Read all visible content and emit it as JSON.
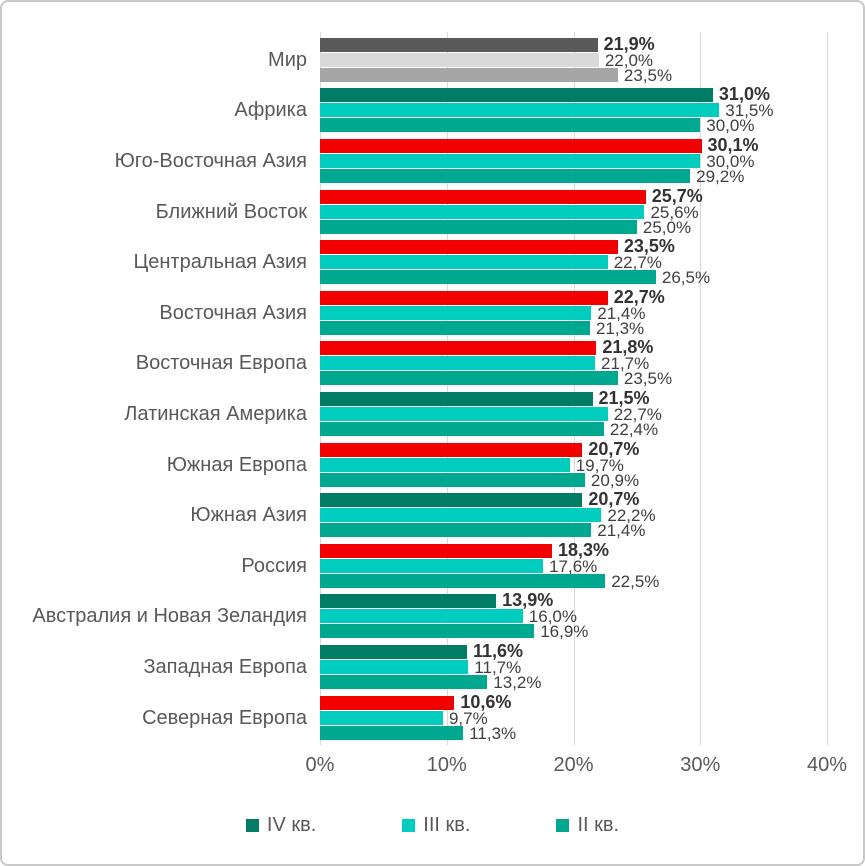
{
  "chart_data": {
    "type": "bar",
    "orientation": "horizontal",
    "title": "",
    "xlabel": "",
    "ylabel": "",
    "xlim": [
      0,
      40
    ],
    "grid": true,
    "x_ticks": [
      "0%",
      "10%",
      "20%",
      "30%",
      "40%"
    ],
    "x_tick_values": [
      0,
      10,
      20,
      30,
      40
    ],
    "legend_position": "bottom",
    "series": [
      {
        "key": "q4",
        "name": "IV кв.",
        "color": "#007D64"
      },
      {
        "key": "q3",
        "name": "III кв.",
        "color": "#00CDBE"
      },
      {
        "key": "q2",
        "name": "II кв.",
        "color": "#00A88F"
      }
    ],
    "highlight_color": "#F20000",
    "rows": [
      {
        "category": "Мир",
        "values": [
          21.9,
          22.0,
          23.5
        ],
        "labels": [
          "21,9%",
          "22,0%",
          "23,5%"
        ],
        "colors": [
          "#595959",
          "#D9D9D9",
          "#A6A6A6"
        ]
      },
      {
        "category": "Африка",
        "values": [
          31.0,
          31.5,
          30.0
        ],
        "labels": [
          "31,0%",
          "31,5%",
          "30,0%"
        ],
        "colors": [
          "#007D64",
          "#00CDBE",
          "#00A88F"
        ]
      },
      {
        "category": "Юго-Восточная Азия",
        "values": [
          30.1,
          30.0,
          29.2
        ],
        "labels": [
          "30,1%",
          "30,0%",
          "29,2%"
        ],
        "colors": [
          "#F20000",
          "#00CDBE",
          "#00A88F"
        ]
      },
      {
        "category": "Ближний Восток",
        "values": [
          25.7,
          25.6,
          25.0
        ],
        "labels": [
          "25,7%",
          "25,6%",
          "25,0%"
        ],
        "colors": [
          "#F20000",
          "#00CDBE",
          "#00A88F"
        ]
      },
      {
        "category": "Центральная Азия",
        "values": [
          23.5,
          22.7,
          26.5
        ],
        "labels": [
          "23,5%",
          "22,7%",
          "26,5%"
        ],
        "colors": [
          "#F20000",
          "#00CDBE",
          "#00A88F"
        ]
      },
      {
        "category": "Восточная Азия",
        "values": [
          22.7,
          21.4,
          21.3
        ],
        "labels": [
          "22,7%",
          "21,4%",
          "21,3%"
        ],
        "colors": [
          "#F20000",
          "#00CDBE",
          "#00A88F"
        ]
      },
      {
        "category": "Восточная Европа",
        "values": [
          21.8,
          21.7,
          23.5
        ],
        "labels": [
          "21,8%",
          "21,7%",
          "23,5%"
        ],
        "colors": [
          "#F20000",
          "#00CDBE",
          "#00A88F"
        ]
      },
      {
        "category": "Латинская Америка",
        "values": [
          21.5,
          22.7,
          22.4
        ],
        "labels": [
          "21,5%",
          "22,7%",
          "22,4%"
        ],
        "colors": [
          "#007D64",
          "#00CDBE",
          "#00A88F"
        ]
      },
      {
        "category": "Южная Европа",
        "values": [
          20.7,
          19.7,
          20.9
        ],
        "labels": [
          "20,7%",
          "19,7%",
          "20,9%"
        ],
        "colors": [
          "#F20000",
          "#00CDBE",
          "#00A88F"
        ]
      },
      {
        "category": "Южная Азия",
        "values": [
          20.7,
          22.2,
          21.4
        ],
        "labels": [
          "20,7%",
          "22,2%",
          "21,4%"
        ],
        "colors": [
          "#007D64",
          "#00CDBE",
          "#00A88F"
        ]
      },
      {
        "category": "Россия",
        "values": [
          18.3,
          17.6,
          22.5
        ],
        "labels": [
          "18,3%",
          "17,6%",
          "22,5%"
        ],
        "colors": [
          "#F20000",
          "#00CDBE",
          "#00A88F"
        ]
      },
      {
        "category": "Австралия и Новая Зеландия",
        "values": [
          13.9,
          16.0,
          16.9
        ],
        "labels": [
          "13,9%",
          "16,0%",
          "16,9%"
        ],
        "colors": [
          "#007D64",
          "#00CDBE",
          "#00A88F"
        ]
      },
      {
        "category": "Западная Европа",
        "values": [
          11.6,
          11.7,
          13.2
        ],
        "labels": [
          "11,6%",
          "11,7%",
          "13,2%"
        ],
        "colors": [
          "#007D64",
          "#00CDBE",
          "#00A88F"
        ]
      },
      {
        "category": "Северная Европа",
        "values": [
          10.6,
          9.7,
          11.3
        ],
        "labels": [
          "10,6%",
          "9,7%",
          "11,3%"
        ],
        "colors": [
          "#F20000",
          "#00CDBE",
          "#00A88F"
        ]
      }
    ]
  }
}
